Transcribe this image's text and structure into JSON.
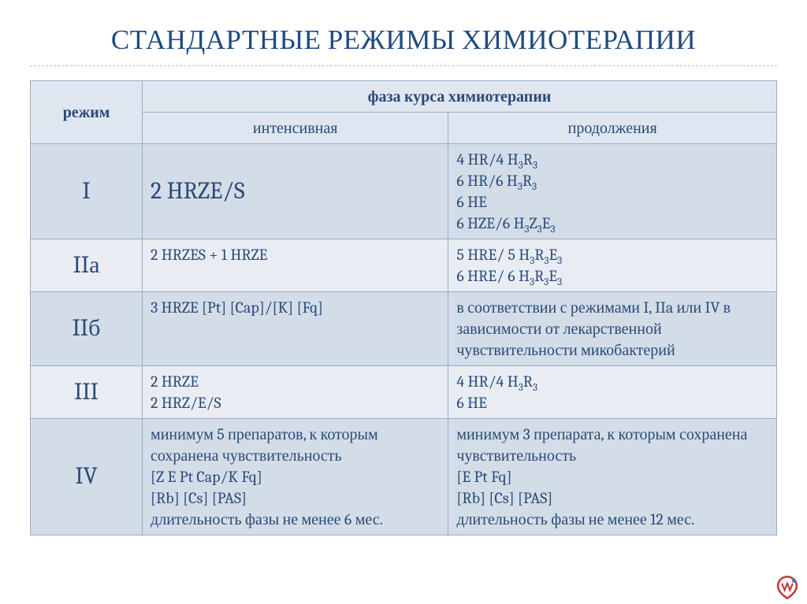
{
  "title": "СТАНДАРТНЫЕ РЕЖИМЫ ХИМИОТЕРАПИИ",
  "colors": {
    "title_text": "#204a80",
    "divider": "#b8c5d8",
    "border": "#9aabc4",
    "header_bg": "#dfe6ef",
    "row_alt_bg": "#d3dde8",
    "row_bg": "#e9edf3",
    "cell_text": "#2a4a78"
  },
  "headers": {
    "mode": "режим",
    "phase": "фаза курса химиотерапии",
    "intensive": "интенсивная",
    "continuation": "продолжения"
  },
  "rows": [
    {
      "mode": "I",
      "intensive_html": "2 HRZE/S",
      "intensive_big": true,
      "continuation_html": "4 HR/4 H<span class='sub'>3</span>R<span class='sub'>3</span><br>6 HR/6 H<span class='sub'>3</span>R<span class='sub'>3</span><br>6 HE<br>6 HZE/6 H<span class='sub'>3</span>Z<span class='sub'>3</span>E<span class='sub'>3</span>",
      "alt": true
    },
    {
      "mode": "IIа",
      "intensive_html": "2 HRZES + 1 HRZE",
      "continuation_html": "5 HRE/ 5 H<span class='sub'>3</span>R<span class='sub'>3</span>E<span class='sub'>3</span><br>6 HRE/ 6 H<span class='sub'>3</span>R<span class='sub'>3</span>E<span class='sub'>3</span>",
      "alt": false
    },
    {
      "mode": "IIб",
      "intensive_html": "3 HRZE [Pt] [Cap]/[K] [Fq]",
      "continuation_html": "в соответствии с режимами I, IIa или IV в зависимости от лекарственной чувствительности микобактерий",
      "alt": true
    },
    {
      "mode": "III",
      "intensive_html": "2 HRZE<br>2 HRZ/E/S",
      "continuation_html": "4 HR/4 H<span class='sub'>3</span>R<span class='sub'>3</span><br>6 HE",
      "alt": false
    },
    {
      "mode": "IV",
      "intensive_html": "минимум 5 препаратов, к которым сохранена чувствительность<br>[Z E Pt Cap/K Fq]<br>[Rb] [Cs] [PAS]<br>длительность фазы не менее 6 мес.",
      "continuation_html": "минимум 3 препарата, к которым сохранена чувствительность<br>[E Pt Fq]<br>[Rb] [Cs] [PAS]<br>длительность фазы не менее 12 мес.",
      "alt": true
    }
  ],
  "column_widths": {
    "mode": "15%",
    "intensive": "41%",
    "continuation": "44%"
  },
  "logo_colors": {
    "stroke": "#c03a3a",
    "accent": "#3a7ab8"
  }
}
